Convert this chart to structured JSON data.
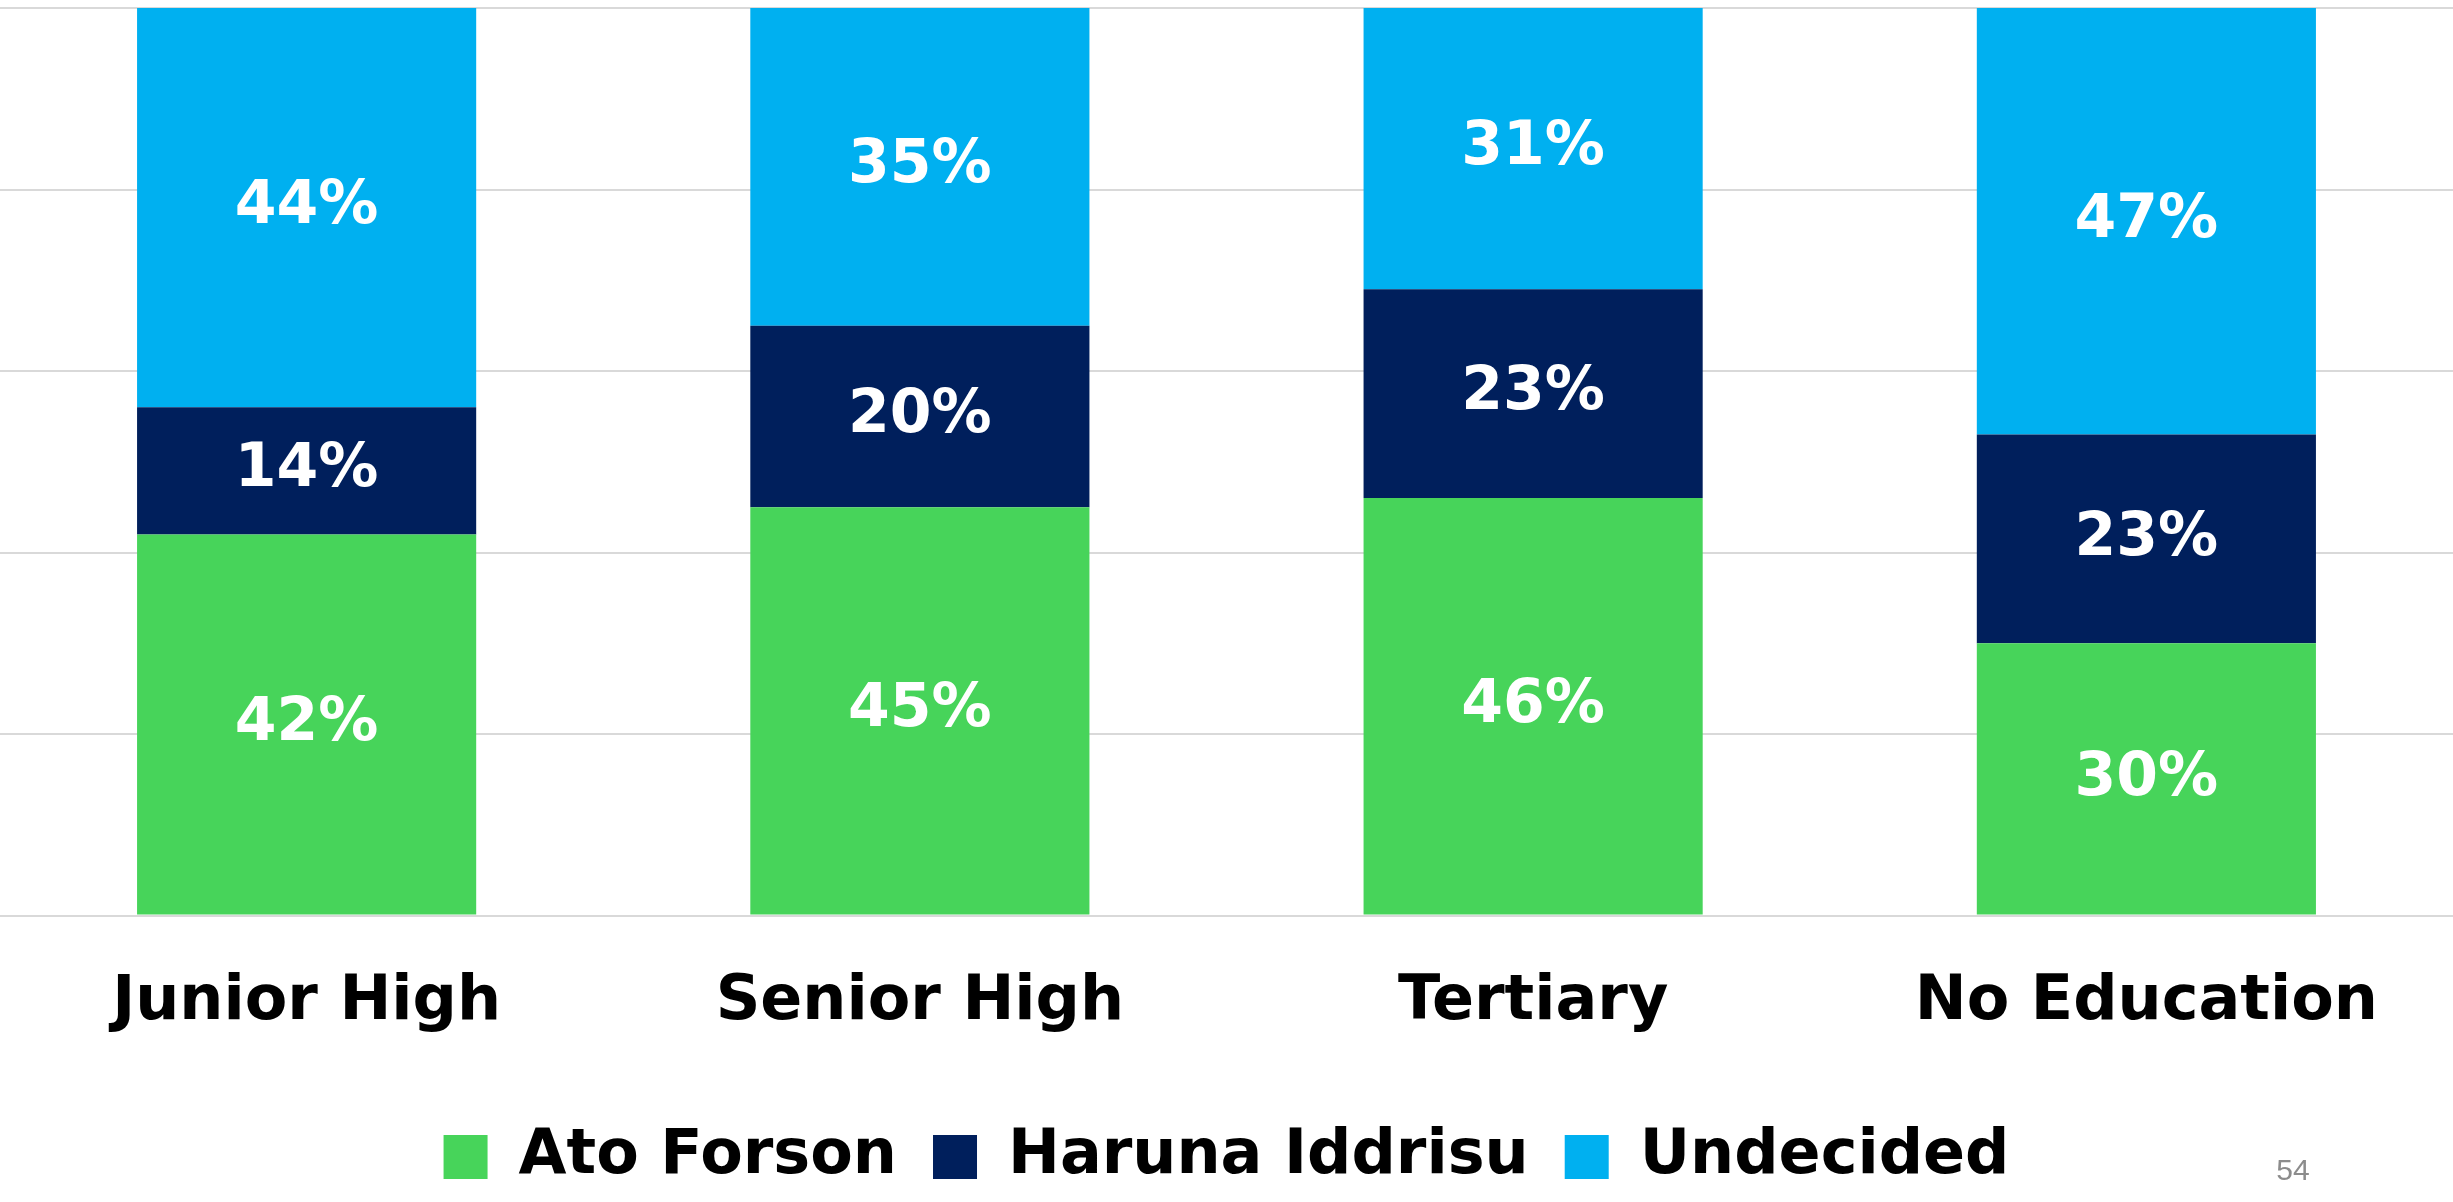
{
  "chart_data": {
    "type": "bar",
    "stacked": true,
    "categories": [
      "Junior High",
      "Senior High",
      "Tertiary",
      "No Education"
    ],
    "series": [
      {
        "name": "Ato Forson",
        "color": "#47d45a",
        "values": [
          42,
          45,
          46,
          30
        ],
        "value_labels": [
          "42%",
          "45%",
          "46%",
          "30%"
        ]
      },
      {
        "name": "Haruna Iddrisu",
        "color": "#001f5c",
        "values": [
          14,
          20,
          23,
          23
        ],
        "value_labels": [
          "14%",
          "20%",
          "23%",
          "23%"
        ]
      },
      {
        "name": "Undecided",
        "color": "#00b0f0",
        "values": [
          44,
          35,
          31,
          47
        ],
        "value_labels": [
          "44%",
          "35%",
          "31%",
          "47%"
        ]
      }
    ],
    "tick_labels": "x",
    "grid": "y",
    "legend": "bottom",
    "annotations": [
      "54"
    ]
  }
}
